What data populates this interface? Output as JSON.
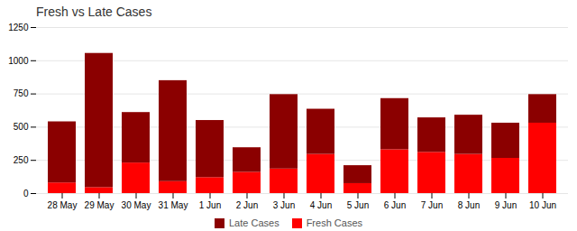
{
  "chart_data": {
    "type": "bar",
    "title": "Fresh vs Late Cases",
    "categories": [
      "28 May",
      "29 May",
      "30 May",
      "31 May",
      "1 Jun",
      "2 Jun",
      "3 Jun",
      "4 Jun",
      "5 Jun",
      "6 Jun",
      "7 Jun",
      "8 Jun",
      "9 Jun",
      "10 Jun"
    ],
    "series": [
      {
        "name": "Fresh Cases",
        "color": "#FF0000",
        "values": [
          80,
          45,
          230,
          90,
          120,
          160,
          185,
          295,
          75,
          330,
          310,
          295,
          265,
          530
        ]
      },
      {
        "name": "Late Cases",
        "color": "#8B0000",
        "values": [
          460,
          1010,
          380,
          760,
          430,
          185,
          560,
          340,
          135,
          385,
          260,
          295,
          265,
          215
        ]
      }
    ],
    "stacked": true,
    "ylim": [
      0,
      1250
    ],
    "yticks": [
      0,
      250,
      500,
      750,
      1000,
      1250
    ],
    "grid": true,
    "legend": "bottom"
  }
}
